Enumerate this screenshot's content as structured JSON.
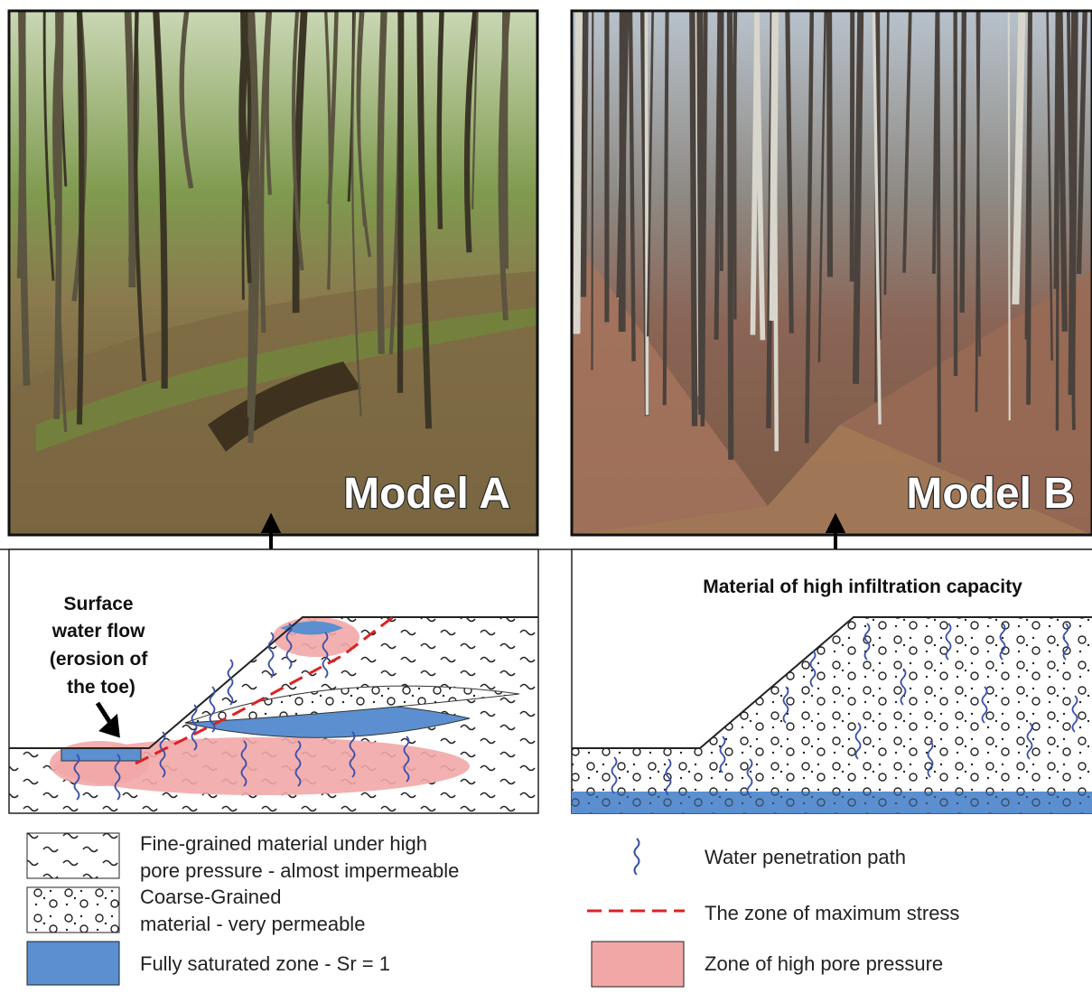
{
  "photos": [
    {
      "label": "Model A"
    },
    {
      "label": "Model B"
    }
  ],
  "diagram_a": {
    "annotation": [
      "Surface",
      "water flow",
      "(erosion of",
      "the toe)"
    ]
  },
  "diagram_b": {
    "annotation": "Material of high infiltration capacity"
  },
  "legend": {
    "left": [
      {
        "lines": [
          "Fine-grained material under high",
          "pore pressure - almost impermeable"
        ]
      },
      {
        "lines": [
          "Coarse-Grained",
          "material - very permeable"
        ]
      },
      {
        "lines": [
          "Fully saturated zone - Sr = 1"
        ]
      }
    ],
    "right": [
      {
        "label": "Water penetration path"
      },
      {
        "label": "The zone of maximum stress"
      },
      {
        "label": "Zone of high pore pressure"
      }
    ]
  }
}
